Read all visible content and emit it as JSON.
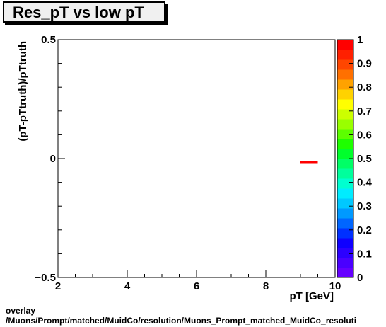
{
  "title": "Res_pT vs low pT",
  "footer": {
    "line1": "overlay",
    "line2": "/Muons/Prompt/matched/MuidCo/resolution/Muons_Prompt_matched_MuidCo_resoluti"
  },
  "colors": {
    "series": "#ff0000",
    "palette": [
      "#6600ff",
      "#4a00ff",
      "#2c00ff",
      "#0f00ff",
      "#0030ff",
      "#0066ff",
      "#0099ff",
      "#00c8ff",
      "#00ecff",
      "#00ffd0",
      "#00ff9c",
      "#00ff66",
      "#00ff2c",
      "#1eff00",
      "#5cff00",
      "#99ff00",
      "#ccff00",
      "#ffff00",
      "#ffd200",
      "#ffa200",
      "#ff7000",
      "#ff4600",
      "#ff2000",
      "#ff0000"
    ]
  },
  "chart_data": {
    "type": "line",
    "title": "Res_pT vs low pT",
    "xlabel": "pT [GeV]",
    "ylabel": "(pT-pTtruth)/pTtruth",
    "xlim": [
      2,
      10
    ],
    "ylim": [
      -0.5,
      0.5
    ],
    "x_ticks": [
      "2",
      "4",
      "6",
      "8",
      "10"
    ],
    "y_ticks": [
      "0.5",
      "0",
      "−0.5"
    ],
    "series": [
      {
        "x": [
          9,
          9.5
        ],
        "values": [
          -0.015,
          -0.015
        ]
      }
    ],
    "colorbar": {
      "range": [
        0,
        1
      ],
      "ticks": [
        "0",
        "0.1",
        "0.2",
        "0.3",
        "0.4",
        "0.5",
        "0.6",
        "0.7",
        "0.8",
        "0.9",
        "1"
      ]
    }
  }
}
